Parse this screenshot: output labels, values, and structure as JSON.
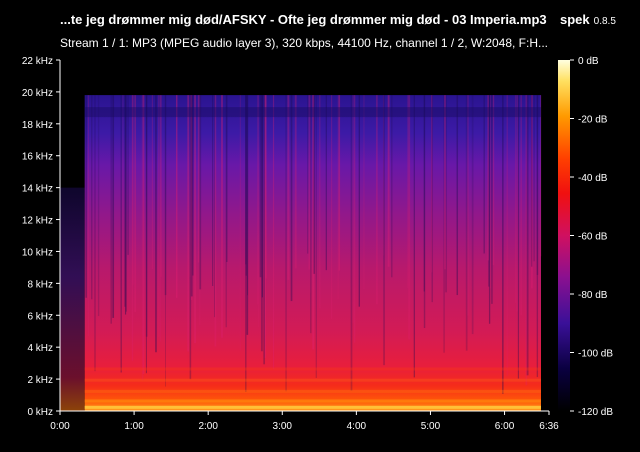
{
  "window": {
    "title": "...te jeg drømmer mig død/AFSKY - Ofte jeg drømmer mig død - 03 Imperia.mp3",
    "app_name": "spek",
    "app_version": "0.8.5",
    "stream_info": "Stream 1 / 1: MP3 (MPEG audio layer 3), 320 kbps, 44100 Hz, channel 1 / 2, W:2048, F:H..."
  },
  "chart_data": {
    "type": "heatmap",
    "x_ticks": [
      "0:00",
      "1:00",
      "2:00",
      "3:00",
      "4:00",
      "5:00",
      "6:00",
      "6:36"
    ],
    "x_tick_seconds": [
      0,
      60,
      120,
      180,
      240,
      300,
      360,
      396
    ],
    "xlim": [
      0,
      396
    ],
    "y_ticks": [
      "0 kHz",
      "2 kHz",
      "4 kHz",
      "6 kHz",
      "8 kHz",
      "10 kHz",
      "12 kHz",
      "14 kHz",
      "16 kHz",
      "18 kHz",
      "20 kHz",
      "22 kHz"
    ],
    "y_tick_khz": [
      0,
      2,
      4,
      6,
      8,
      10,
      12,
      14,
      16,
      18,
      20,
      22
    ],
    "ylim_khz": [
      0,
      22
    ],
    "colorbar_ticks": [
      "0 dB",
      "-20 dB",
      "-40 dB",
      "-60 dB",
      "-80 dB",
      "-100 dB",
      "-120 dB"
    ],
    "colorbar_db": [
      0,
      -20,
      -40,
      -60,
      -80,
      -100,
      -120
    ],
    "colorbar_range_db": [
      -120,
      0
    ],
    "cutoff_khz": 19.8,
    "audio_start_s": 20
  }
}
